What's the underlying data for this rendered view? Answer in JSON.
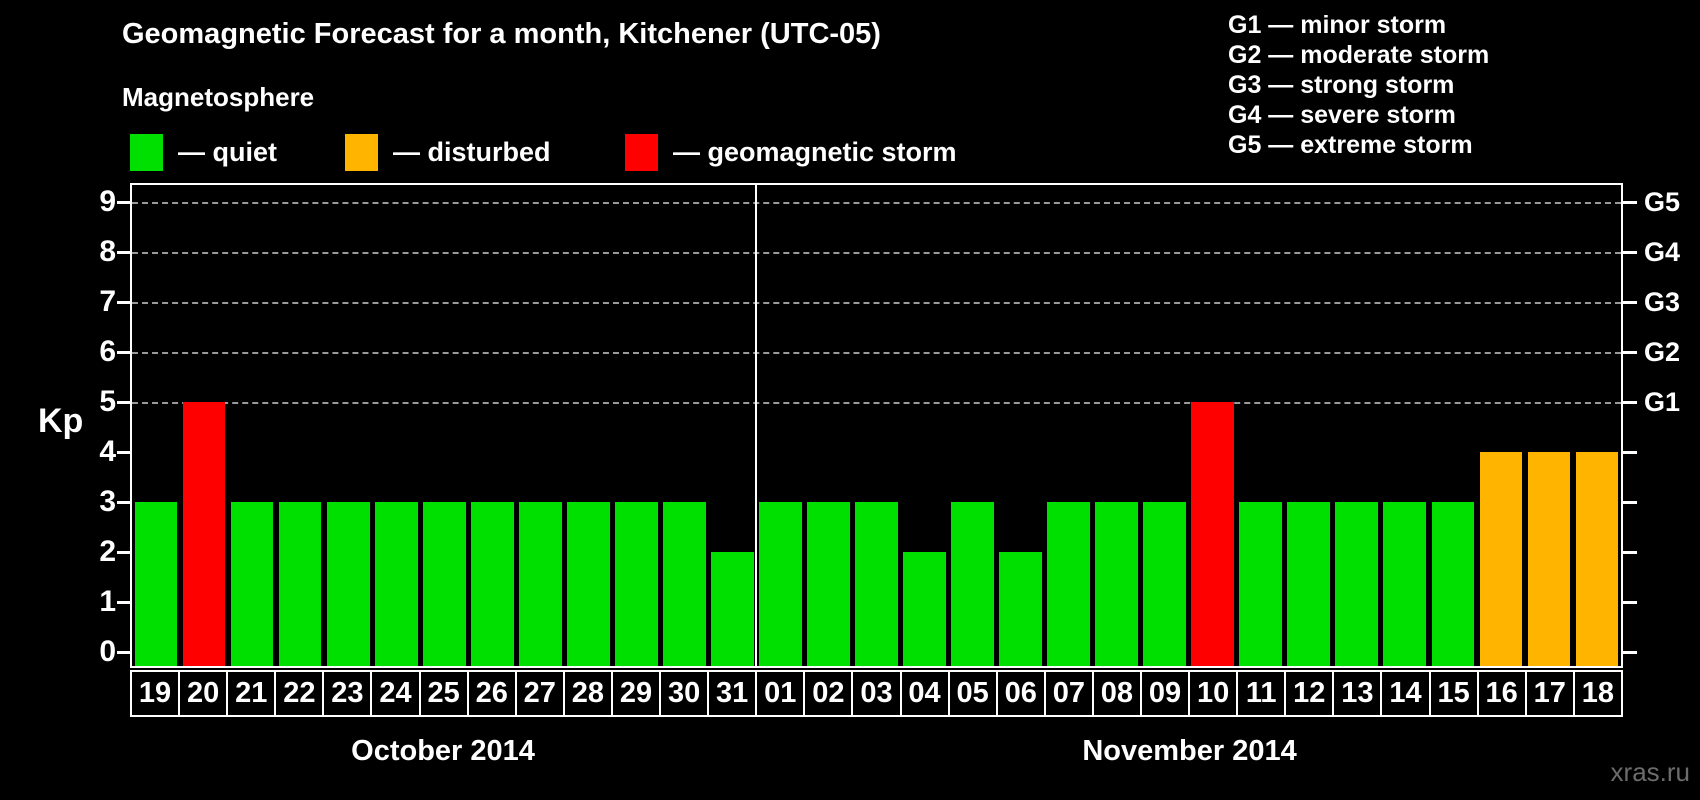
{
  "title": "Geomagnetic Forecast for a month, Kitchener (UTC-05)",
  "subtitle": "Magnetosphere",
  "legend": {
    "items": [
      {
        "status": "quiet",
        "label": "— quiet"
      },
      {
        "status": "disturbed",
        "label": "— disturbed"
      },
      {
        "status": "storm",
        "label": "— geomagnetic storm"
      }
    ]
  },
  "g_scale_legend": [
    "G1 — minor storm",
    "G2 — moderate storm",
    "G3 — strong storm",
    "G4 — severe storm",
    "G5 — extreme storm"
  ],
  "colors": {
    "quiet": "#00e000",
    "disturbed": "#ffb400",
    "storm": "#ff0000",
    "grid": "#9a9a9a",
    "axis": "#ffffff",
    "background": "#000000",
    "watermark": "#6c6c6c"
  },
  "y_axis": {
    "label": "Kp",
    "ticks": [
      0,
      1,
      2,
      3,
      4,
      5,
      6,
      7,
      8,
      9
    ]
  },
  "right_axis": {
    "ticks": [
      0,
      1,
      2,
      3,
      4,
      5,
      6,
      7,
      8,
      9
    ],
    "labels": [
      {
        "kp": 5,
        "text": "G1"
      },
      {
        "kp": 6,
        "text": "G2"
      },
      {
        "kp": 7,
        "text": "G3"
      },
      {
        "kp": 8,
        "text": "G4"
      },
      {
        "kp": 9,
        "text": "G5"
      }
    ]
  },
  "watermark": "xras.ru",
  "chart_data": {
    "type": "bar",
    "title": "Geomagnetic Forecast for a month, Kitchener (UTC-05)",
    "xlabel": "",
    "ylabel": "Kp",
    "ylim": [
      0,
      9
    ],
    "gridlines_kp": [
      5,
      6,
      7,
      8,
      9
    ],
    "legend_position": "top",
    "groups": [
      {
        "month": "October 2014",
        "days": [
          {
            "day": "19",
            "kp": 3,
            "status": "quiet"
          },
          {
            "day": "20",
            "kp": 5,
            "status": "storm"
          },
          {
            "day": "21",
            "kp": 3,
            "status": "quiet"
          },
          {
            "day": "22",
            "kp": 3,
            "status": "quiet"
          },
          {
            "day": "23",
            "kp": 3,
            "status": "quiet"
          },
          {
            "day": "24",
            "kp": 3,
            "status": "quiet"
          },
          {
            "day": "25",
            "kp": 3,
            "status": "quiet"
          },
          {
            "day": "26",
            "kp": 3,
            "status": "quiet"
          },
          {
            "day": "27",
            "kp": 3,
            "status": "quiet"
          },
          {
            "day": "28",
            "kp": 3,
            "status": "quiet"
          },
          {
            "day": "29",
            "kp": 3,
            "status": "quiet"
          },
          {
            "day": "30",
            "kp": 3,
            "status": "quiet"
          },
          {
            "day": "31",
            "kp": 2,
            "status": "quiet"
          }
        ]
      },
      {
        "month": "November 2014",
        "days": [
          {
            "day": "01",
            "kp": 3,
            "status": "quiet"
          },
          {
            "day": "02",
            "kp": 3,
            "status": "quiet"
          },
          {
            "day": "03",
            "kp": 3,
            "status": "quiet"
          },
          {
            "day": "04",
            "kp": 2,
            "status": "quiet"
          },
          {
            "day": "05",
            "kp": 3,
            "status": "quiet"
          },
          {
            "day": "06",
            "kp": 2,
            "status": "quiet"
          },
          {
            "day": "07",
            "kp": 3,
            "status": "quiet"
          },
          {
            "day": "08",
            "kp": 3,
            "status": "quiet"
          },
          {
            "day": "09",
            "kp": 3,
            "status": "quiet"
          },
          {
            "day": "10",
            "kp": 5,
            "status": "storm"
          },
          {
            "day": "11",
            "kp": 3,
            "status": "quiet"
          },
          {
            "day": "12",
            "kp": 3,
            "status": "quiet"
          },
          {
            "day": "13",
            "kp": 3,
            "status": "quiet"
          },
          {
            "day": "14",
            "kp": 3,
            "status": "quiet"
          },
          {
            "day": "15",
            "kp": 3,
            "status": "quiet"
          },
          {
            "day": "16",
            "kp": 4,
            "status": "disturbed"
          },
          {
            "day": "17",
            "kp": 4,
            "status": "disturbed"
          },
          {
            "day": "18",
            "kp": 4,
            "status": "disturbed"
          }
        ]
      }
    ]
  }
}
